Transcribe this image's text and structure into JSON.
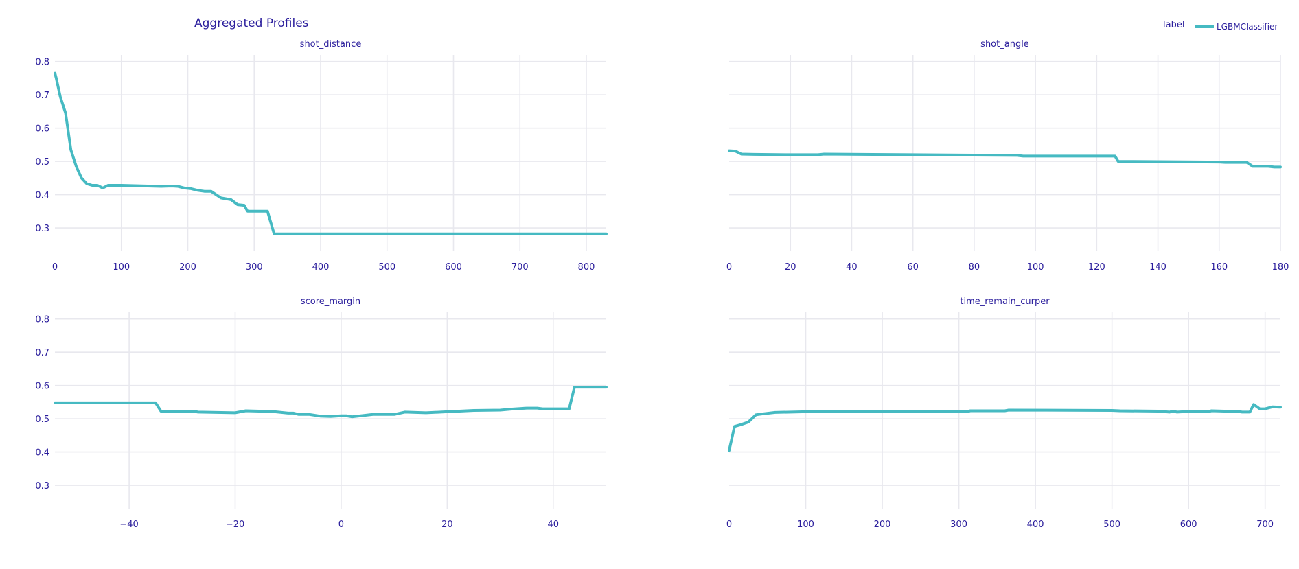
{
  "title": "Aggregated Profiles",
  "legend": {
    "title": "label",
    "items": [
      "LGBMClassifier"
    ]
  },
  "colors": {
    "series": "#46bac2",
    "text": "#2a1d9c",
    "grid": "#e8e8ee"
  },
  "chart_data": [
    {
      "type": "line",
      "title": "shot_distance",
      "xlim": [
        0,
        830
      ],
      "ylim": [
        0.23,
        0.82
      ],
      "xticks": [
        0,
        100,
        200,
        300,
        400,
        500,
        600,
        700,
        800
      ],
      "yticks": [
        0.3,
        0.4,
        0.5,
        0.6,
        0.7,
        0.8
      ],
      "yticklabels": [
        "0.3",
        "0.4",
        "0.5",
        "0.6",
        "0.7",
        "0.8"
      ],
      "series": [
        {
          "name": "LGBMClassifier",
          "x": [
            0,
            2,
            8,
            16,
            24,
            32,
            40,
            48,
            56,
            64,
            72,
            80,
            88,
            100,
            120,
            140,
            160,
            175,
            185,
            195,
            205,
            215,
            225,
            235,
            250,
            265,
            275,
            285,
            290,
            300,
            310,
            320,
            330,
            340,
            400,
            500,
            600,
            700,
            830
          ],
          "y": [
            0.765,
            0.75,
            0.695,
            0.645,
            0.535,
            0.485,
            0.45,
            0.433,
            0.428,
            0.428,
            0.42,
            0.428,
            0.428,
            0.428,
            0.427,
            0.426,
            0.425,
            0.426,
            0.425,
            0.42,
            0.418,
            0.413,
            0.41,
            0.41,
            0.39,
            0.385,
            0.37,
            0.368,
            0.35,
            0.35,
            0.35,
            0.35,
            0.282,
            0.282,
            0.282,
            0.282,
            0.282,
            0.282,
            0.282
          ]
        }
      ]
    },
    {
      "type": "line",
      "title": "shot_angle",
      "xlim": [
        0,
        180
      ],
      "ylim": [
        0.23,
        0.82
      ],
      "xticks": [
        0,
        20,
        40,
        60,
        80,
        100,
        120,
        140,
        160,
        180
      ],
      "yticks": [
        0.3,
        0.4,
        0.5,
        0.6,
        0.7,
        0.8
      ],
      "yticklabels": [],
      "series": [
        {
          "name": "LGBMClassifier",
          "x": [
            0,
            2,
            4,
            8,
            20,
            29,
            31,
            60,
            94,
            96,
            126,
            127,
            160,
            162,
            169,
            171,
            176,
            178,
            180
          ],
          "y": [
            0.532,
            0.531,
            0.522,
            0.521,
            0.52,
            0.52,
            0.522,
            0.52,
            0.518,
            0.516,
            0.516,
            0.5,
            0.498,
            0.497,
            0.497,
            0.485,
            0.485,
            0.483,
            0.483
          ]
        }
      ]
    },
    {
      "type": "line",
      "title": "score_margin",
      "xlim": [
        -54,
        50
      ],
      "ylim": [
        0.23,
        0.82
      ],
      "xticks": [
        -40,
        -20,
        0,
        20,
        40
      ],
      "xticklabels": [
        "−40",
        "−20",
        "0",
        "20",
        "40"
      ],
      "yticks": [
        0.3,
        0.4,
        0.5,
        0.6,
        0.7,
        0.8
      ],
      "yticklabels": [
        "0.3",
        "0.4",
        "0.5",
        "0.6",
        "0.7",
        "0.8"
      ],
      "series": [
        {
          "name": "LGBMClassifier",
          "x": [
            -54,
            -35,
            -34,
            -28,
            -27,
            -20,
            -18,
            -13,
            -10,
            -9,
            -8,
            -6,
            -4,
            -2,
            0,
            1,
            2,
            6,
            10,
            12,
            16,
            20,
            25,
            30,
            32,
            35,
            37,
            38,
            43,
            44,
            50
          ],
          "y": [
            0.548,
            0.548,
            0.523,
            0.523,
            0.52,
            0.518,
            0.524,
            0.522,
            0.517,
            0.517,
            0.513,
            0.513,
            0.508,
            0.507,
            0.509,
            0.509,
            0.506,
            0.513,
            0.513,
            0.52,
            0.518,
            0.521,
            0.525,
            0.526,
            0.529,
            0.532,
            0.532,
            0.53,
            0.53,
            0.595,
            0.595
          ]
        }
      ]
    },
    {
      "type": "line",
      "title": "time_remain_curper",
      "xlim": [
        0,
        720
      ],
      "ylim": [
        0.23,
        0.82
      ],
      "xticks": [
        0,
        100,
        200,
        300,
        400,
        500,
        600,
        700
      ],
      "yticks": [
        0.3,
        0.4,
        0.5,
        0.6,
        0.7,
        0.8
      ],
      "yticklabels": [],
      "series": [
        {
          "name": "LGBMClassifier",
          "x": [
            0,
            2,
            7,
            15,
            25,
            35,
            45,
            60,
            100,
            200,
            310,
            315,
            360,
            365,
            500,
            510,
            560,
            575,
            580,
            585,
            600,
            625,
            630,
            665,
            670,
            680,
            685,
            693,
            700,
            710,
            720
          ],
          "y": [
            0.405,
            0.425,
            0.477,
            0.482,
            0.49,
            0.512,
            0.515,
            0.519,
            0.521,
            0.522,
            0.521,
            0.524,
            0.524,
            0.526,
            0.525,
            0.524,
            0.523,
            0.52,
            0.523,
            0.52,
            0.522,
            0.521,
            0.524,
            0.522,
            0.52,
            0.52,
            0.543,
            0.53,
            0.53,
            0.536,
            0.535
          ]
        }
      ]
    }
  ]
}
